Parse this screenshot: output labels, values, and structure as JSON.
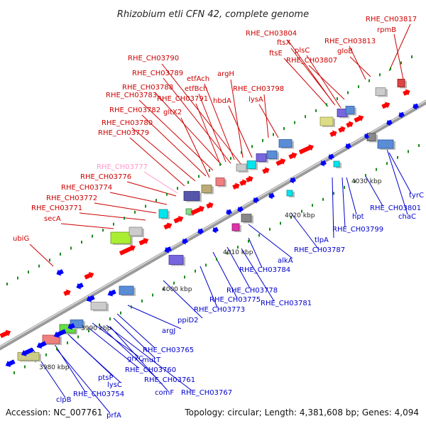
{
  "title": "Rhizobium etli CFN 42, complete genome",
  "footer": {
    "accession": "Accession: NC_007761",
    "summary": "Topology: circular; Length: 4,381,608 bp; Genes: 4,094"
  },
  "colors": {
    "forward_gene": "#ff0000",
    "reverse_gene": "#0000ff",
    "forward_label": "#cc0000",
    "reverse_label": "#0000cc",
    "unnamed_gene_label": "#ff99cc",
    "backbone": "#999999",
    "tick_dot": "#1a8a1a"
  },
  "ticks": [
    "3980 kbp",
    "3990 kbp",
    "4000 kbp",
    "4010 kbp",
    "4020 kbp",
    "4030 kbp"
  ],
  "forward_labels": [
    "RHE_CH03817",
    "rpmB",
    "RHE_CH03804",
    "ftsX",
    "plsC",
    "RHE_CH03813",
    "ftsE",
    "RHE_CH03807",
    "gloB",
    "RHE_CH03790",
    "argH",
    "etfAch",
    "RHE_CH03789",
    "etfBch",
    "RHE_CH03798",
    "RHE_CH03788",
    "hbdA",
    "lysA",
    "RHE_CH03783",
    "RHE_CH03791",
    "RHE_CH03782",
    "gltX2",
    "RHE_CH03780",
    "RHE_CH03779",
    "RHE_CH03777",
    "RHE_CH03776",
    "RHE_CH03774",
    "RHE_CH03772",
    "RHE_CH03771",
    "secA",
    "ubiG"
  ],
  "reverse_labels": [
    "tyrC",
    "RHE_CH03801",
    "chaC",
    "hpt",
    "RHE_CH03799",
    "tlpA",
    "RHE_CH03787",
    "alkA",
    "RHE_CH03784",
    "RHE_CH03778",
    "RHE_CH03775",
    "RHE_CH03781",
    "RHE_CH03773",
    "ppiD2",
    "argJ",
    "RHE_CH03765",
    "mutT",
    "grxC",
    "RHE_CH03760",
    "RHE_CH03761",
    "lysC",
    "comF",
    "RHE_CH03767",
    "ptsP",
    "RHE_CH03754",
    "clpB",
    "prfA"
  ]
}
